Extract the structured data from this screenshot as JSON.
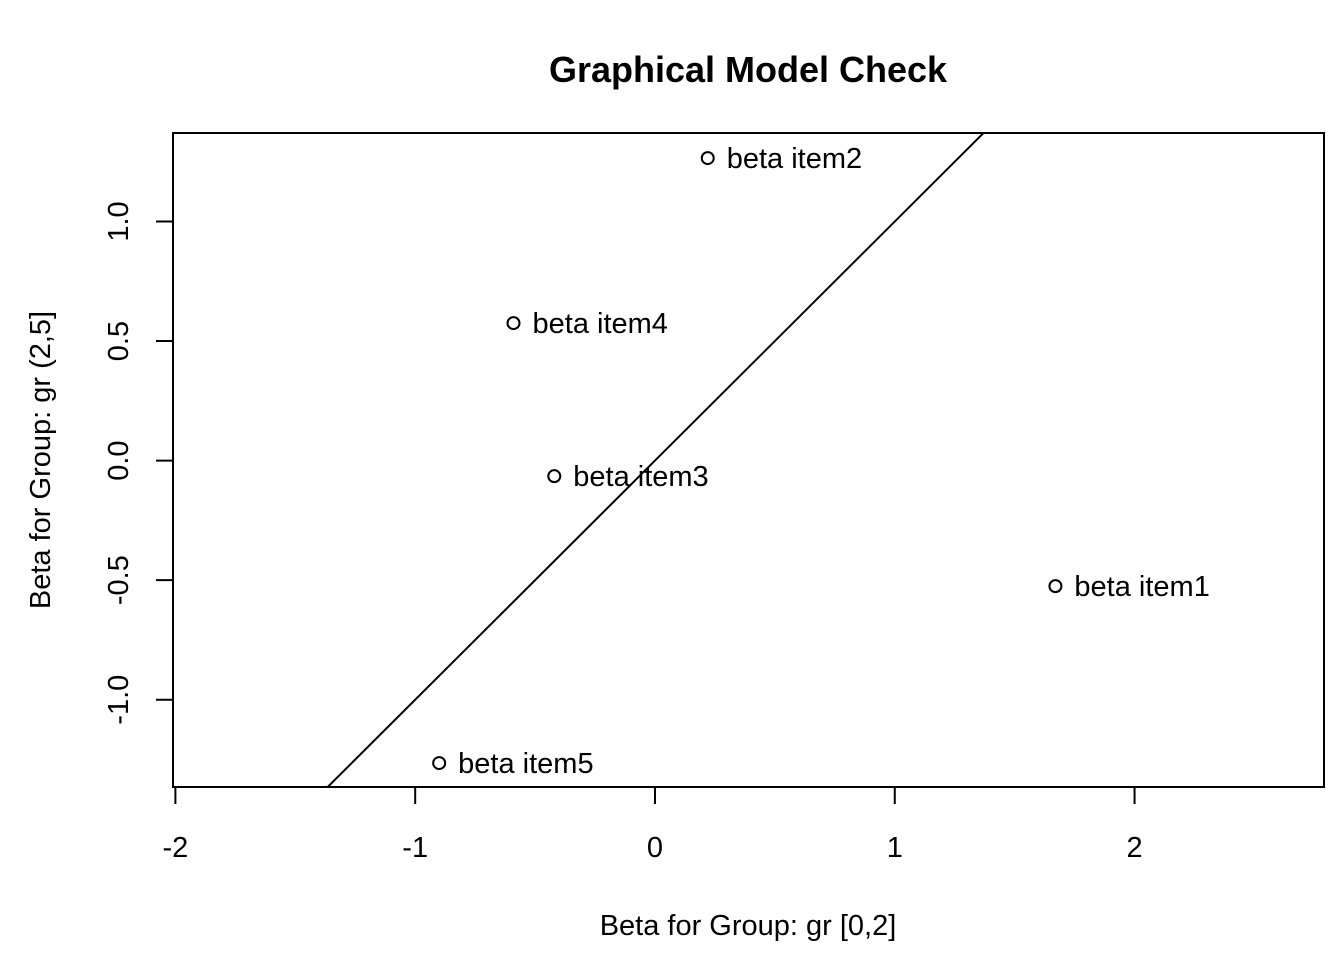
{
  "chart_data": {
    "type": "scatter",
    "title": "Graphical Model Check",
    "xlabel": "Beta for Group: gr [0,2]",
    "ylabel": "Beta for Group: gr (2,5]",
    "xlim": [
      -2.01,
      2.79
    ],
    "ylim": [
      -1.365,
      1.37
    ],
    "x_ticks": [
      -2,
      -1,
      0,
      1,
      2
    ],
    "x_tick_labels": [
      "-2",
      "-1",
      "0",
      "1",
      "2"
    ],
    "y_ticks": [
      -1.0,
      -0.5,
      0.0,
      0.5,
      1.0
    ],
    "y_tick_labels": [
      "-1.0",
      "-0.5",
      "0.0",
      "0.5",
      "1.0"
    ],
    "points": [
      {
        "label": "beta item1",
        "x": 1.67,
        "y": -0.525
      },
      {
        "label": "beta item2",
        "x": 0.22,
        "y": 1.265
      },
      {
        "label": "beta item3",
        "x": -0.42,
        "y": -0.065
      },
      {
        "label": "beta item4",
        "x": -0.59,
        "y": 0.575
      },
      {
        "label": "beta item5",
        "x": -0.9,
        "y": -1.265
      }
    ],
    "reference_line": {
      "slope": 1,
      "intercept": 0
    },
    "grid": false,
    "legend": "none",
    "colors": {
      "foreground": "#000000",
      "background": "#ffffff"
    }
  }
}
